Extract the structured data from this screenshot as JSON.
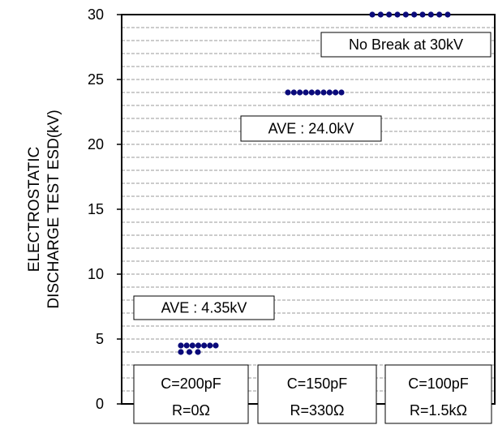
{
  "chart_data": {
    "type": "scatter",
    "ylabel_lines": [
      "ELECTROSTATIC",
      "DISCHARGE TEST ESD(kV)"
    ],
    "ylim": [
      0,
      30
    ],
    "yticks": [
      0,
      5,
      10,
      15,
      20,
      25,
      30
    ],
    "grid_step": 1,
    "grid_style": "dashed",
    "groups": [
      {
        "condition_lines": [
          "C=200pF",
          "R=0Ω"
        ],
        "annotation": "AVE : 4.35kV",
        "points": [
          4.5,
          4.5,
          4.5,
          4.5,
          4.5,
          4.5,
          4.5,
          4.0,
          4.0,
          4.0
        ]
      },
      {
        "condition_lines": [
          "C=150pF",
          "R=330Ω"
        ],
        "annotation": "AVE : 24.0kV",
        "points": [
          24,
          24,
          24,
          24,
          24,
          24,
          24,
          24,
          24,
          24
        ]
      },
      {
        "condition_lines": [
          "C=100pF",
          "R=1.5kΩ"
        ],
        "annotation": "No Break at 30kV",
        "points": [
          30,
          30,
          30,
          30,
          30,
          30,
          30,
          30,
          30,
          30
        ]
      }
    ],
    "marker_color": "#0a0a7a"
  }
}
